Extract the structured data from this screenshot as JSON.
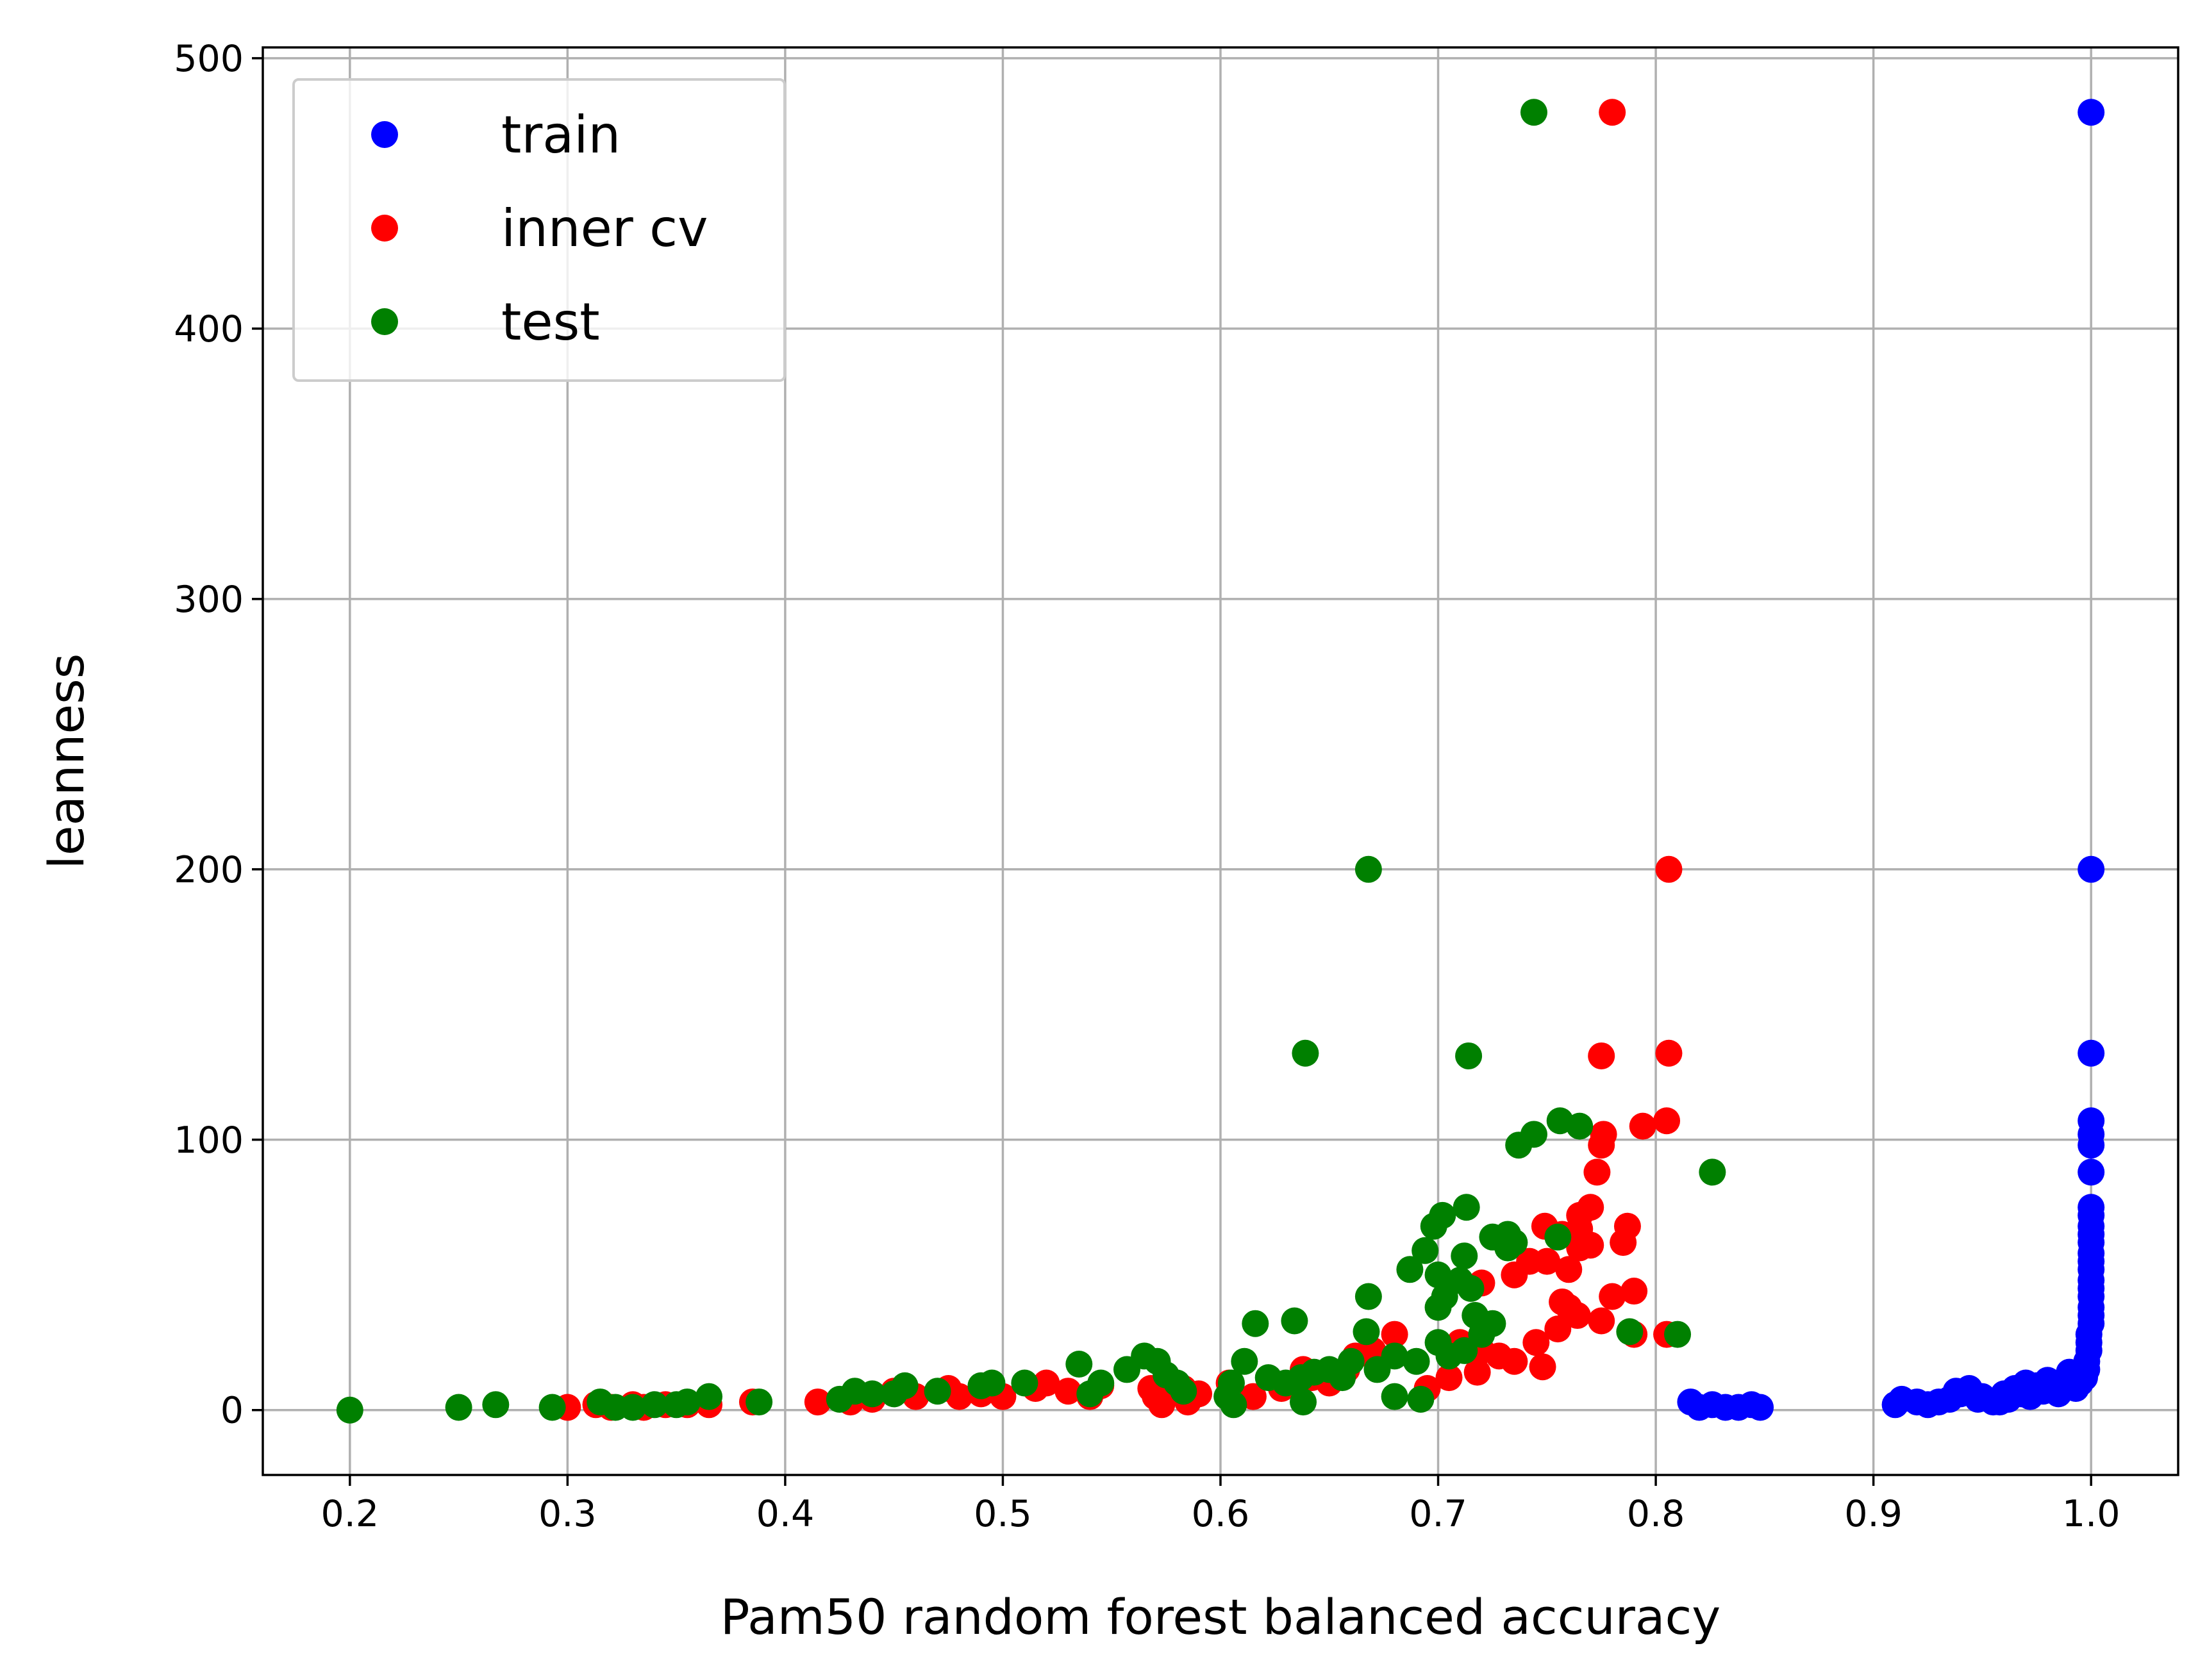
{
  "chart_data": {
    "type": "scatter",
    "title": "",
    "xlabel": "Pam50 random forest balanced accuracy",
    "ylabel": "leanness",
    "xlim": [
      0.16,
      1.04
    ],
    "ylim": [
      -24,
      504
    ],
    "xticks": [
      "0.2",
      "0.3",
      "0.4",
      "0.5",
      "0.6",
      "0.7",
      "0.8",
      "0.9",
      "1.0"
    ],
    "yticks": [
      "0",
      "100",
      "200",
      "300",
      "400",
      "500"
    ],
    "grid": true,
    "legend_position": "top-left",
    "series": [
      {
        "name": "train",
        "color": "#0000ff",
        "points": [
          [
            1.0,
            480
          ],
          [
            1.0,
            200
          ],
          [
            1.0,
            132
          ],
          [
            1.0,
            107
          ],
          [
            1.0,
            102
          ],
          [
            1.0,
            98
          ],
          [
            1.0,
            88
          ],
          [
            1.0,
            75
          ],
          [
            1.0,
            72
          ],
          [
            1.0,
            68
          ],
          [
            1.0,
            65
          ],
          [
            1.0,
            62
          ],
          [
            1.0,
            58
          ],
          [
            1.0,
            55
          ],
          [
            1.0,
            52
          ],
          [
            1.0,
            48
          ],
          [
            1.0,
            45
          ],
          [
            1.0,
            42
          ],
          [
            1.0,
            38
          ],
          [
            1.0,
            35
          ],
          [
            1.0,
            32
          ],
          [
            0.999,
            28
          ],
          [
            0.999,
            25
          ],
          [
            0.999,
            22
          ],
          [
            0.998,
            18
          ],
          [
            0.998,
            15
          ],
          [
            0.997,
            12
          ],
          [
            0.995,
            10
          ],
          [
            0.993,
            8
          ],
          [
            0.99,
            14
          ],
          [
            0.988,
            9
          ],
          [
            0.985,
            6
          ],
          [
            0.98,
            11
          ],
          [
            0.978,
            7
          ],
          [
            0.975,
            9
          ],
          [
            0.972,
            5
          ],
          [
            0.97,
            10
          ],
          [
            0.968,
            6
          ],
          [
            0.965,
            8
          ],
          [
            0.962,
            4
          ],
          [
            0.96,
            6
          ],
          [
            0.958,
            3
          ],
          [
            0.955,
            3
          ],
          [
            0.95,
            5
          ],
          [
            0.948,
            4
          ],
          [
            0.944,
            8
          ],
          [
            0.94,
            6
          ],
          [
            0.938,
            7
          ],
          [
            0.935,
            4
          ],
          [
            0.93,
            3
          ],
          [
            0.925,
            2
          ],
          [
            0.92,
            3
          ],
          [
            0.913,
            4
          ],
          [
            0.91,
            2
          ],
          [
            0.848,
            1
          ],
          [
            0.844,
            2
          ],
          [
            0.838,
            1
          ],
          [
            0.832,
            1
          ],
          [
            0.826,
            2
          ],
          [
            0.82,
            1
          ],
          [
            0.816,
            3
          ]
        ]
      },
      {
        "name": "inner cv",
        "color": "#ff0000",
        "points": [
          [
            0.78,
            480
          ],
          [
            0.806,
            200
          ],
          [
            0.806,
            132
          ],
          [
            0.805,
            107
          ],
          [
            0.775,
            131
          ],
          [
            0.794,
            105
          ],
          [
            0.776,
            102
          ],
          [
            0.775,
            98
          ],
          [
            0.773,
            88
          ],
          [
            0.77,
            75
          ],
          [
            0.765,
            72
          ],
          [
            0.757,
            65
          ],
          [
            0.765,
            67
          ],
          [
            0.749,
            68
          ],
          [
            0.787,
            68
          ],
          [
            0.785,
            62
          ],
          [
            0.765,
            60
          ],
          [
            0.77,
            61
          ],
          [
            0.742,
            55
          ],
          [
            0.75,
            55
          ],
          [
            0.76,
            52
          ],
          [
            0.735,
            50
          ],
          [
            0.72,
            47
          ],
          [
            0.757,
            40
          ],
          [
            0.764,
            35
          ],
          [
            0.775,
            33
          ],
          [
            0.78,
            42
          ],
          [
            0.79,
            44
          ],
          [
            0.805,
            28
          ],
          [
            0.79,
            28
          ],
          [
            0.72,
            22
          ],
          [
            0.728,
            20
          ],
          [
            0.735,
            18
          ],
          [
            0.718,
            14
          ],
          [
            0.748,
            16
          ],
          [
            0.755,
            30
          ],
          [
            0.76,
            38
          ],
          [
            0.745,
            25
          ],
          [
            0.68,
            28
          ],
          [
            0.67,
            22
          ],
          [
            0.662,
            20
          ],
          [
            0.658,
            15
          ],
          [
            0.65,
            10
          ],
          [
            0.642,
            12
          ],
          [
            0.638,
            15
          ],
          [
            0.628,
            8
          ],
          [
            0.615,
            5
          ],
          [
            0.604,
            10
          ],
          [
            0.59,
            6
          ],
          [
            0.585,
            3
          ],
          [
            0.583,
            8
          ],
          [
            0.573,
            2
          ],
          [
            0.57,
            5
          ],
          [
            0.568,
            8
          ],
          [
            0.545,
            9
          ],
          [
            0.54,
            5
          ],
          [
            0.53,
            7
          ],
          [
            0.52,
            10
          ],
          [
            0.515,
            8
          ],
          [
            0.5,
            5
          ],
          [
            0.495,
            9
          ],
          [
            0.49,
            6
          ],
          [
            0.48,
            5
          ],
          [
            0.475,
            8
          ],
          [
            0.46,
            5
          ],
          [
            0.45,
            7
          ],
          [
            0.44,
            4
          ],
          [
            0.43,
            3
          ],
          [
            0.415,
            3
          ],
          [
            0.385,
            3
          ],
          [
            0.365,
            2
          ],
          [
            0.355,
            2
          ],
          [
            0.345,
            2
          ],
          [
            0.335,
            1
          ],
          [
            0.33,
            2
          ],
          [
            0.32,
            1
          ],
          [
            0.313,
            2
          ],
          [
            0.3,
            1
          ],
          [
            0.705,
            12
          ],
          [
            0.695,
            8
          ],
          [
            0.71,
            25
          ]
        ]
      },
      {
        "name": "test",
        "color": "#008000",
        "points": [
          [
            0.744,
            480
          ],
          [
            0.668,
            200
          ],
          [
            0.639,
            132
          ],
          [
            0.714,
            131
          ],
          [
            0.756,
            107
          ],
          [
            0.765,
            105
          ],
          [
            0.744,
            102
          ],
          [
            0.737,
            98
          ],
          [
            0.826,
            88
          ],
          [
            0.713,
            75
          ],
          [
            0.702,
            72
          ],
          [
            0.698,
            68
          ],
          [
            0.732,
            65
          ],
          [
            0.725,
            64
          ],
          [
            0.755,
            64
          ],
          [
            0.735,
            62
          ],
          [
            0.732,
            60
          ],
          [
            0.694,
            59
          ],
          [
            0.712,
            57
          ],
          [
            0.687,
            52
          ],
          [
            0.7,
            50
          ],
          [
            0.71,
            48
          ],
          [
            0.715,
            45
          ],
          [
            0.703,
            42
          ],
          [
            0.7,
            38
          ],
          [
            0.668,
            42
          ],
          [
            0.616,
            32
          ],
          [
            0.634,
            33
          ],
          [
            0.717,
            35
          ],
          [
            0.725,
            32
          ],
          [
            0.72,
            28
          ],
          [
            0.667,
            29
          ],
          [
            0.788,
            29
          ],
          [
            0.81,
            28
          ],
          [
            0.7,
            25
          ],
          [
            0.712,
            22
          ],
          [
            0.705,
            20
          ],
          [
            0.69,
            18
          ],
          [
            0.68,
            20
          ],
          [
            0.672,
            15
          ],
          [
            0.66,
            18
          ],
          [
            0.65,
            15
          ],
          [
            0.643,
            14
          ],
          [
            0.637,
            12
          ],
          [
            0.63,
            10
          ],
          [
            0.622,
            12
          ],
          [
            0.611,
            18
          ],
          [
            0.605,
            10
          ],
          [
            0.603,
            5
          ],
          [
            0.606,
            2
          ],
          [
            0.638,
            3
          ],
          [
            0.68,
            5
          ],
          [
            0.692,
            4
          ],
          [
            0.656,
            12
          ],
          [
            0.565,
            20
          ],
          [
            0.571,
            18
          ],
          [
            0.557,
            15
          ],
          [
            0.575,
            13
          ],
          [
            0.58,
            10
          ],
          [
            0.583,
            7
          ],
          [
            0.535,
            17
          ],
          [
            0.545,
            10
          ],
          [
            0.54,
            6
          ],
          [
            0.51,
            10
          ],
          [
            0.495,
            10
          ],
          [
            0.49,
            9
          ],
          [
            0.47,
            7
          ],
          [
            0.455,
            9
          ],
          [
            0.45,
            6
          ],
          [
            0.44,
            6
          ],
          [
            0.432,
            7
          ],
          [
            0.425,
            4
          ],
          [
            0.388,
            3
          ],
          [
            0.365,
            5
          ],
          [
            0.355,
            3
          ],
          [
            0.35,
            2
          ],
          [
            0.34,
            2
          ],
          [
            0.33,
            1
          ],
          [
            0.322,
            1
          ],
          [
            0.315,
            3
          ],
          [
            0.293,
            1
          ],
          [
            0.267,
            2
          ],
          [
            0.25,
            1
          ],
          [
            0.2,
            0
          ]
        ]
      }
    ]
  }
}
